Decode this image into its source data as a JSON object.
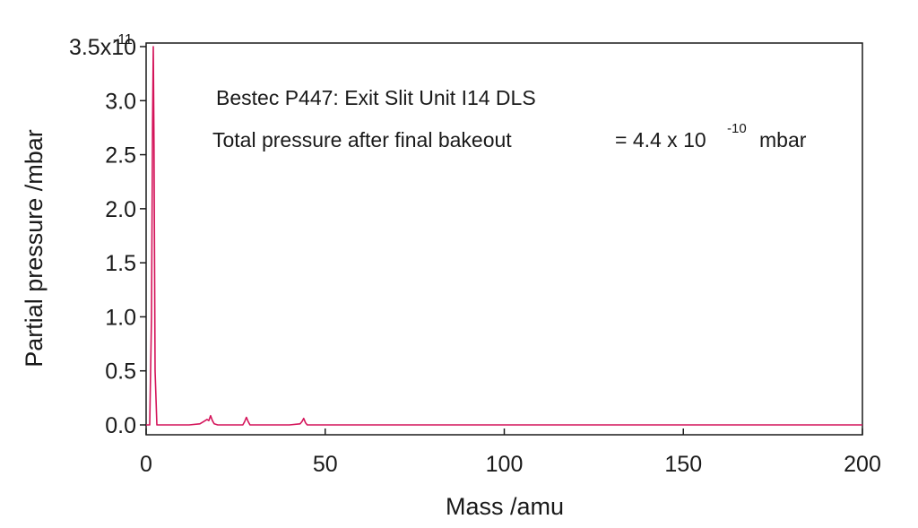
{
  "chart_data": {
    "type": "line",
    "title": "",
    "xlabel": "Mass /amu",
    "ylabel": "Partial pressure /mbar",
    "xlim": [
      0,
      200
    ],
    "ylim": [
      0,
      3.5e-11
    ],
    "x_ticks": [
      0,
      50,
      100,
      150,
      200
    ],
    "x_tick_labels": [
      "0",
      "50",
      "100",
      "150",
      "200"
    ],
    "y_ticks": [
      0,
      0.5,
      1.0,
      1.5,
      2.0,
      2.5,
      3.0,
      3.5
    ],
    "y_tick_labels": [
      "0.0",
      "0.5",
      "1.0",
      "1.5",
      "2.0",
      "2.5",
      "3.0",
      "3.5x10"
    ],
    "y_exponent": "-11",
    "grid": false,
    "line_color": "#d4145a",
    "series": [
      {
        "x": [
          0,
          1.0,
          1.5,
          1.8,
          2.0,
          2.2,
          2.5,
          3.0,
          12,
          15,
          16,
          17,
          17.5,
          18,
          18.5,
          19,
          20,
          27,
          27.5,
          28,
          28.5,
          29,
          40,
          43,
          43.5,
          44,
          44.5,
          45,
          60,
          100,
          150,
          200
        ],
        "y": [
          0,
          0,
          1e-11,
          2.8e-11,
          3.5e-11,
          2.6e-11,
          5e-12,
          0,
          0,
          1e-13,
          3e-13,
          5e-13,
          4e-13,
          8.5e-13,
          4e-13,
          1e-13,
          0,
          0,
          3e-13,
          7e-13,
          3e-13,
          0,
          0,
          1e-13,
          3e-13,
          6e-13,
          2e-13,
          0,
          0,
          0,
          0,
          0
        ]
      }
    ],
    "annotations": {
      "line1": "Bestec P447: Exit Slit Unit I14 DLS",
      "line2_text": "Total pressure after final bakeout",
      "line2_value": "= 4.4 x 10",
      "line2_exponent": "-10",
      "line2_unit": "mbar"
    }
  }
}
